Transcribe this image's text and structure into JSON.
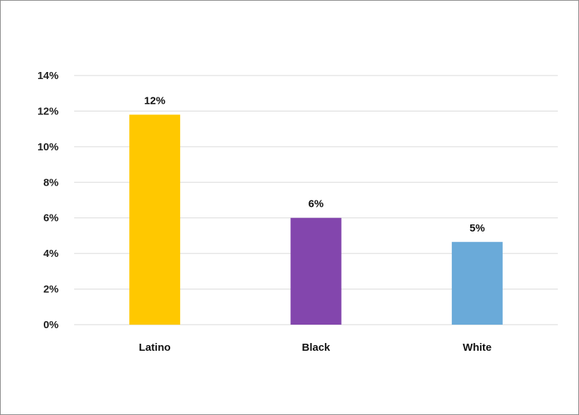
{
  "chart_data": {
    "type": "bar",
    "categories": [
      "Latino",
      "Black",
      "White"
    ],
    "values": [
      11.8,
      6.0,
      4.65
    ],
    "data_labels": [
      "12%",
      "6%",
      "5%"
    ],
    "colors": [
      "#FFC800",
      "#8346AD",
      "#6AAAD9"
    ],
    "ylim": [
      0,
      14
    ],
    "yticks": [
      0,
      2,
      4,
      6,
      8,
      10,
      12,
      14
    ],
    "ytick_labels": [
      "0%",
      "2%",
      "4%",
      "6%",
      "8%",
      "10%",
      "12%",
      "14%"
    ],
    "grid": true,
    "legend": false,
    "title": "",
    "xlabel": "",
    "ylabel": ""
  }
}
